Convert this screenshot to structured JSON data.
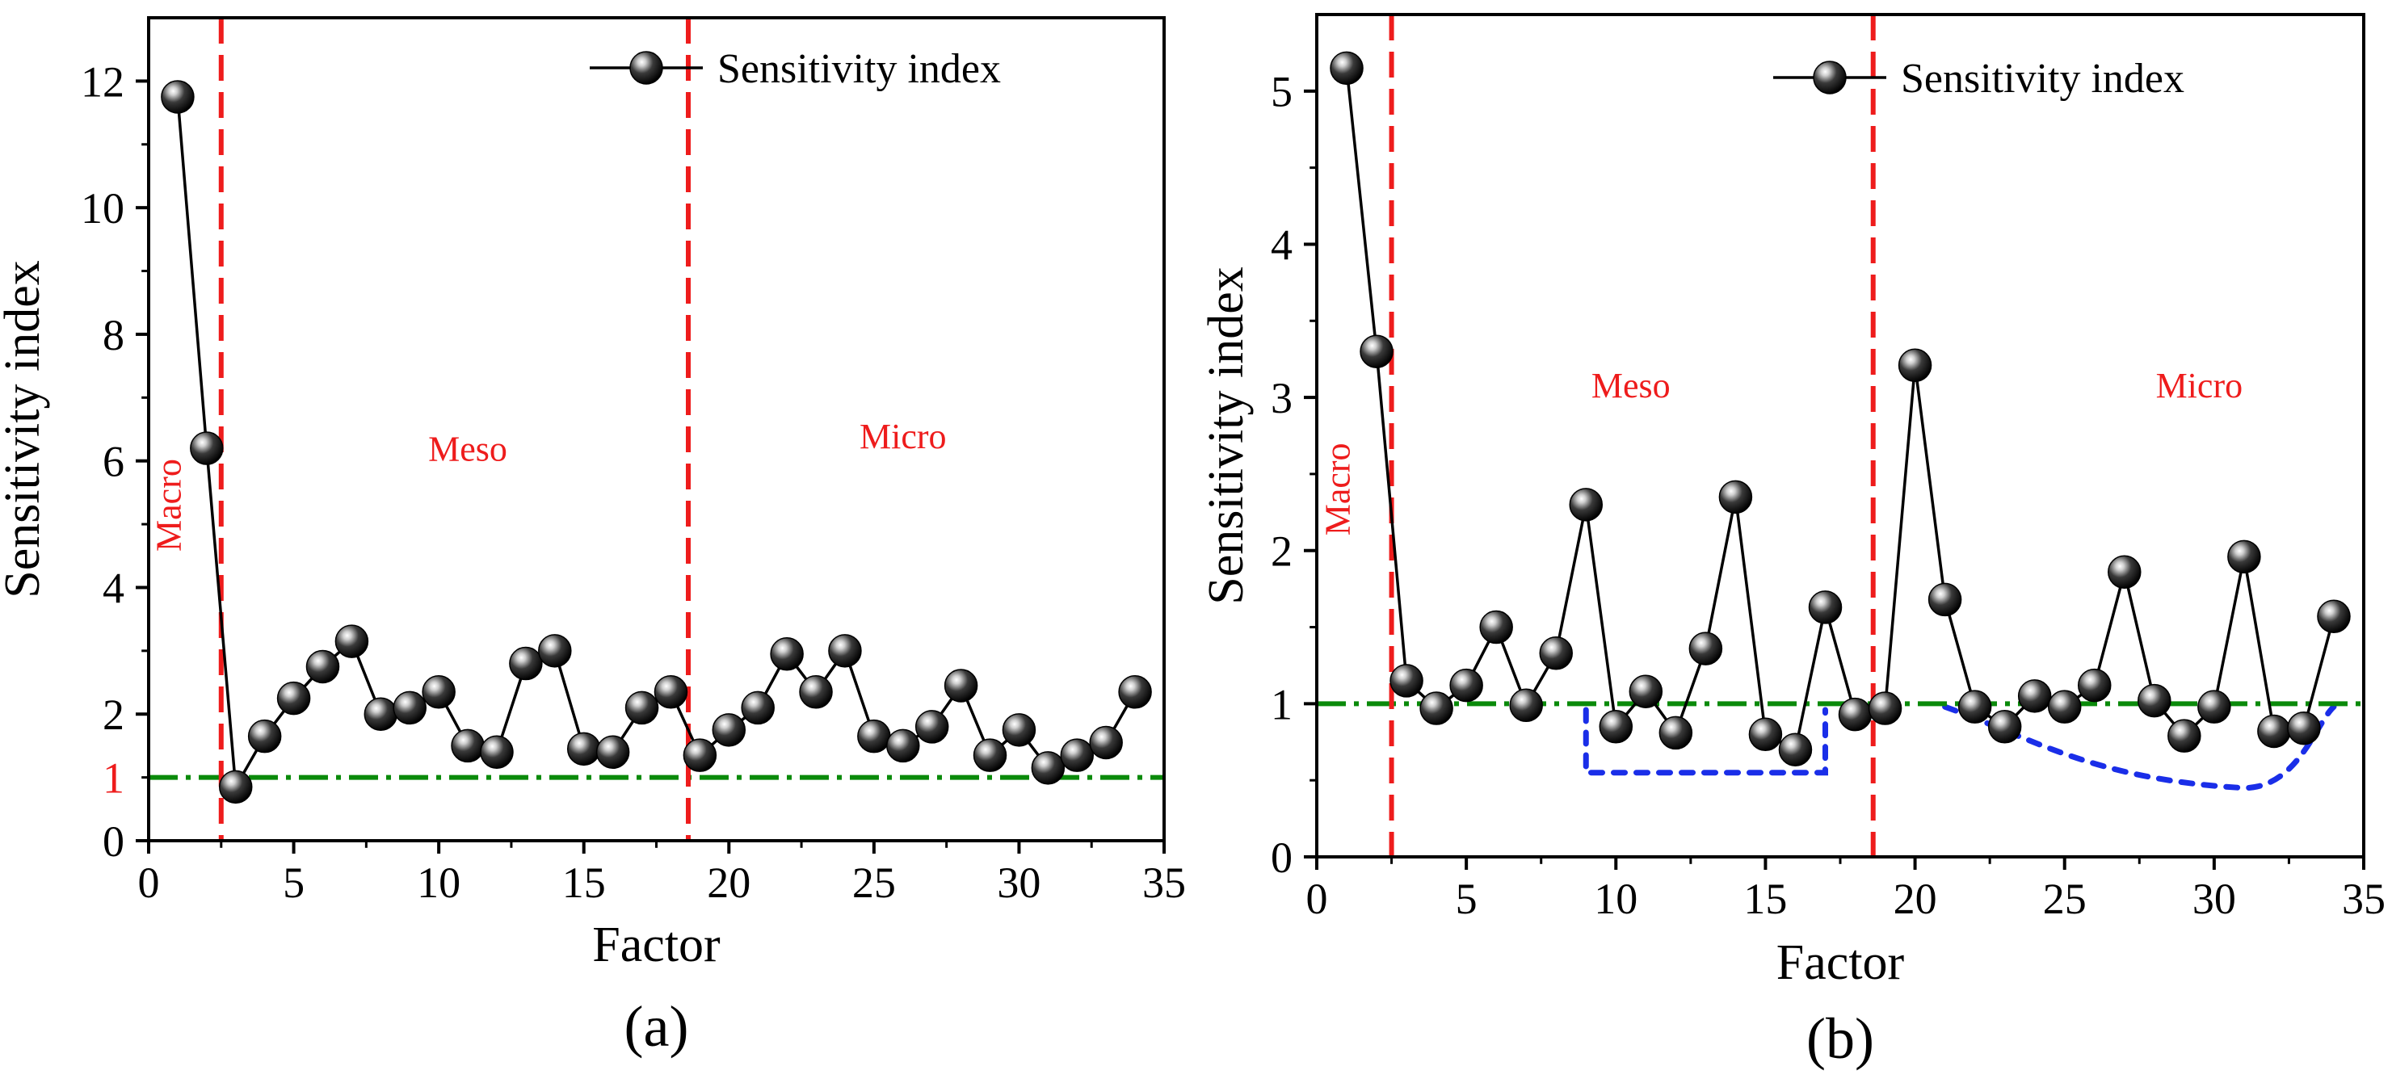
{
  "colors": {
    "axis": "#000000",
    "series_line": "#000000",
    "marker_dark": "#0a0a0a",
    "boundary": "#ee1c1c",
    "threshold": "#0a8a0a",
    "region_label": "#ee1c1c",
    "highlight": "#1a2ee8"
  },
  "chart_data": [
    {
      "type": "line",
      "panel_label": "(a)",
      "xlabel": "Factor",
      "ylabel": "Sensitivity index",
      "xlim": [
        0,
        35
      ],
      "ylim": [
        0,
        13
      ],
      "xticks": [
        0,
        5,
        10,
        15,
        20,
        25,
        30,
        35
      ],
      "xtick_labels": [
        "0",
        "5",
        "10",
        "15",
        "20",
        "25",
        "30",
        "35"
      ],
      "yticks": [
        0,
        2,
        4,
        6,
        8,
        10,
        12
      ],
      "ytick_labels": [
        "0",
        "2",
        "4",
        "6",
        "8",
        "10",
        "12"
      ],
      "extra_ytick": {
        "value": 1,
        "label": "1"
      },
      "legend": {
        "label": "Sensitivity index",
        "position": "top-right"
      },
      "series": [
        {
          "name": "Sensitivity index",
          "x": [
            1,
            2,
            3,
            4,
            5,
            6,
            7,
            8,
            9,
            10,
            11,
            12,
            13,
            14,
            15,
            16,
            17,
            18,
            19,
            20,
            21,
            22,
            23,
            24,
            25,
            26,
            27,
            28,
            29,
            30,
            31,
            32,
            33,
            34
          ],
          "values": [
            11.75,
            6.2,
            0.85,
            1.65,
            2.25,
            2.75,
            3.15,
            2.0,
            2.1,
            2.35,
            1.5,
            1.4,
            2.8,
            3.0,
            1.45,
            1.4,
            2.1,
            2.35,
            1.35,
            1.75,
            2.1,
            2.95,
            2.35,
            3.0,
            1.65,
            1.5,
            1.8,
            2.45,
            1.35,
            1.75,
            1.15,
            1.35,
            1.55,
            2.35
          ]
        }
      ],
      "reference_lines": [
        {
          "type": "horizontal",
          "value": 1,
          "style": "dash-dot"
        },
        {
          "type": "vertical",
          "value": 2.5,
          "style": "dashed"
        },
        {
          "type": "vertical",
          "value": 18.6,
          "style": "dashed"
        }
      ],
      "annotations": [
        {
          "text": "Macro",
          "x": 1.1,
          "y": 5.3,
          "rotation": -90
        },
        {
          "text": "Meso",
          "x": 11,
          "y": 6.0
        },
        {
          "text": "Micro",
          "x": 26,
          "y": 6.2
        }
      ]
    },
    {
      "type": "line",
      "panel_label": "(b)",
      "xlabel": "Factor",
      "ylabel": "Sensitivity index",
      "xlim": [
        0,
        35
      ],
      "ylim": [
        0,
        5.5
      ],
      "xticks": [
        0,
        5,
        10,
        15,
        20,
        25,
        30,
        35
      ],
      "xtick_labels": [
        "0",
        "5",
        "10",
        "15",
        "20",
        "25",
        "30",
        "35"
      ],
      "yticks": [
        0,
        1,
        2,
        3,
        4,
        5
      ],
      "ytick_labels": [
        "0",
        "1",
        "2",
        "3",
        "4",
        "5"
      ],
      "legend": {
        "label": "Sensitivity index",
        "position": "top-right"
      },
      "series": [
        {
          "name": "Sensitivity index",
          "x": [
            1,
            2,
            3,
            4,
            5,
            6,
            7,
            8,
            9,
            10,
            11,
            12,
            13,
            14,
            15,
            16,
            17,
            18,
            19,
            20,
            21,
            22,
            23,
            24,
            25,
            26,
            27,
            28,
            29,
            30,
            31,
            32,
            33,
            34
          ],
          "values": [
            5.15,
            3.3,
            1.15,
            0.97,
            1.12,
            1.5,
            0.99,
            1.33,
            2.3,
            0.85,
            1.08,
            0.81,
            1.36,
            2.35,
            0.8,
            0.7,
            1.63,
            0.93,
            0.97,
            3.21,
            1.68,
            0.98,
            0.85,
            1.05,
            0.98,
            1.12,
            1.86,
            1.02,
            0.79,
            0.98,
            1.96,
            0.82,
            0.84,
            1.57
          ]
        }
      ],
      "reference_lines": [
        {
          "type": "horizontal",
          "value": 1,
          "style": "dash-dot"
        },
        {
          "type": "vertical",
          "value": 2.5,
          "style": "dashed"
        },
        {
          "type": "vertical",
          "value": 18.6,
          "style": "dashed"
        }
      ],
      "annotations": [
        {
          "text": "Macro",
          "x": 1.1,
          "y": 2.4,
          "rotation": -90
        },
        {
          "text": "Meso",
          "x": 10.5,
          "y": 3.0
        },
        {
          "text": "Micro",
          "x": 29.5,
          "y": 3.0
        }
      ],
      "highlight_regions": [
        {
          "shape": "rectangle",
          "x_range": [
            9,
            17
          ],
          "y_range": [
            0.55,
            0.96
          ],
          "style": "dotted"
        },
        {
          "shape": "curve",
          "x_range": [
            21,
            34
          ],
          "y_range": [
            0.45,
            0.98
          ],
          "style": "dotted"
        }
      ]
    }
  ]
}
